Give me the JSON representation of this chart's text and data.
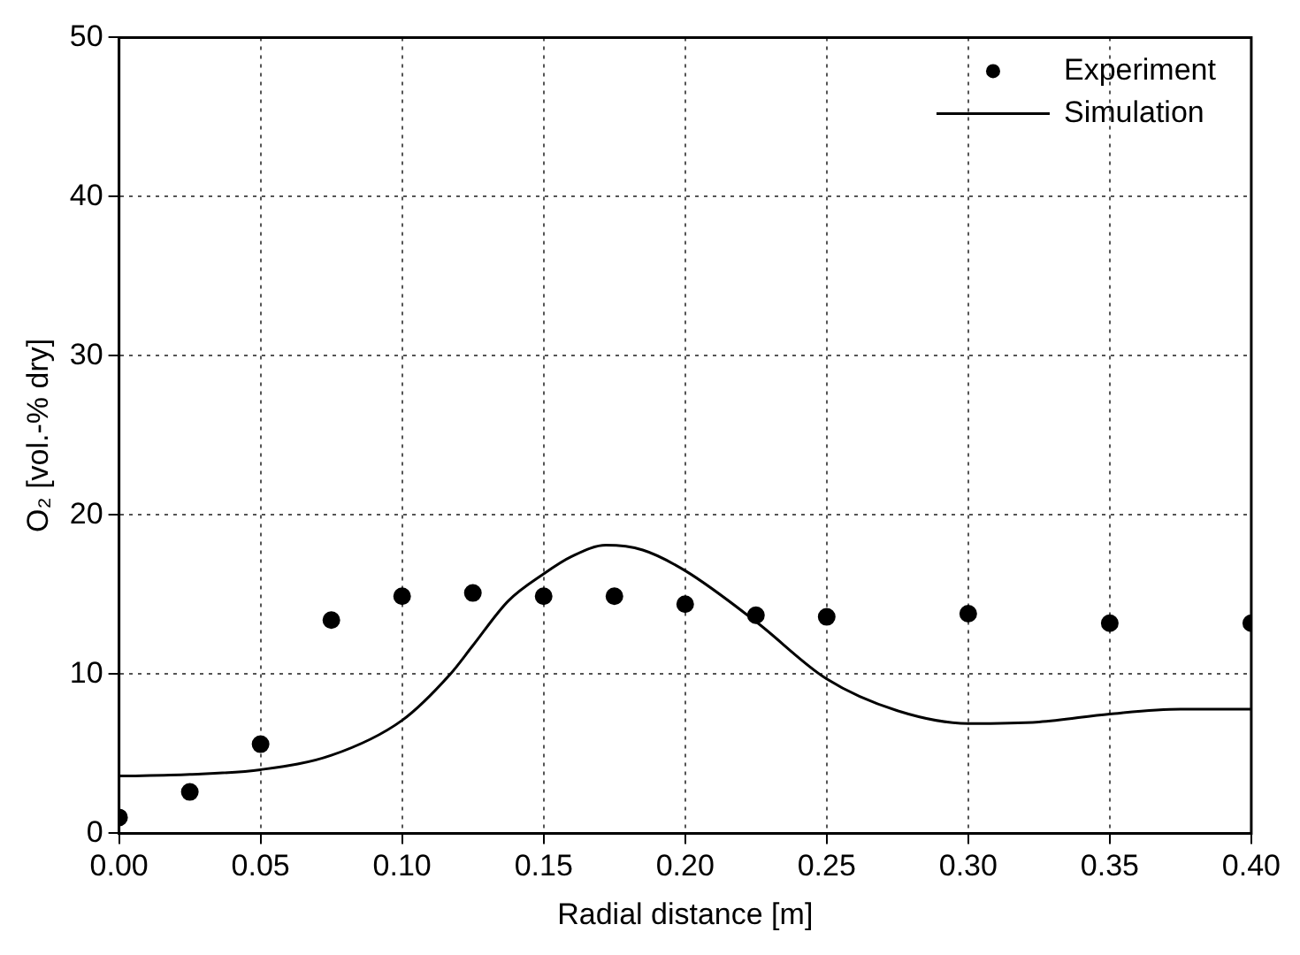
{
  "chart_data": {
    "type": "line",
    "xlabel": "Radial distance [m]",
    "ylabel": "O₂ [vol.-% dry]",
    "xlim": [
      0,
      0.4
    ],
    "xticks": [
      {
        "value": 0,
        "label": "0.00"
      },
      {
        "value": 0.05,
        "label": "0.05"
      },
      {
        "value": 0.1,
        "label": "0.10"
      },
      {
        "value": 0.15,
        "label": "0.15"
      },
      {
        "value": 0.2,
        "label": "0.20"
      },
      {
        "value": 0.25,
        "label": "0.25"
      },
      {
        "value": 0.3,
        "label": "0.30"
      },
      {
        "value": 0.35,
        "label": "0.35"
      },
      {
        "value": 0.4,
        "label": "0.40"
      }
    ],
    "ylim": [
      0,
      50
    ],
    "yticks": [
      0,
      10,
      20,
      30,
      40,
      50
    ],
    "grid": true,
    "legend": "top right",
    "line_style": "solid",
    "series": [
      {
        "name": "Experiment",
        "type": "scatter",
        "marker": "circle",
        "color": "#000000",
        "x": [
          0,
          0.025,
          0.05,
          0.075,
          0.1,
          0.125,
          0.15,
          0.175,
          0.2,
          0.225,
          0.25,
          0.3,
          0.35,
          0.4
        ],
        "values": [
          1.0,
          2.6,
          5.6,
          13.4,
          14.9,
          15.1,
          14.9,
          14.9,
          14.4,
          13.7,
          13.6,
          13.8,
          13.2,
          13.2
        ]
      },
      {
        "name": "Simulation",
        "color": "#000000",
        "x": [
          0,
          0.025,
          0.05,
          0.075,
          0.1,
          0.117,
          0.125,
          0.1375,
          0.15,
          0.16,
          0.172,
          0.185,
          0.2,
          0.225,
          0.25,
          0.275,
          0.3,
          0.325,
          0.35,
          0.375,
          0.4
        ],
        "values": [
          3.6,
          3.7,
          4.0,
          4.9,
          7.1,
          10.0,
          11.8,
          14.6,
          16.3,
          17.4,
          18.1,
          17.8,
          16.5,
          13.3,
          9.7,
          7.7,
          6.9,
          7.0,
          7.5,
          7.8,
          7.8
        ]
      }
    ]
  }
}
